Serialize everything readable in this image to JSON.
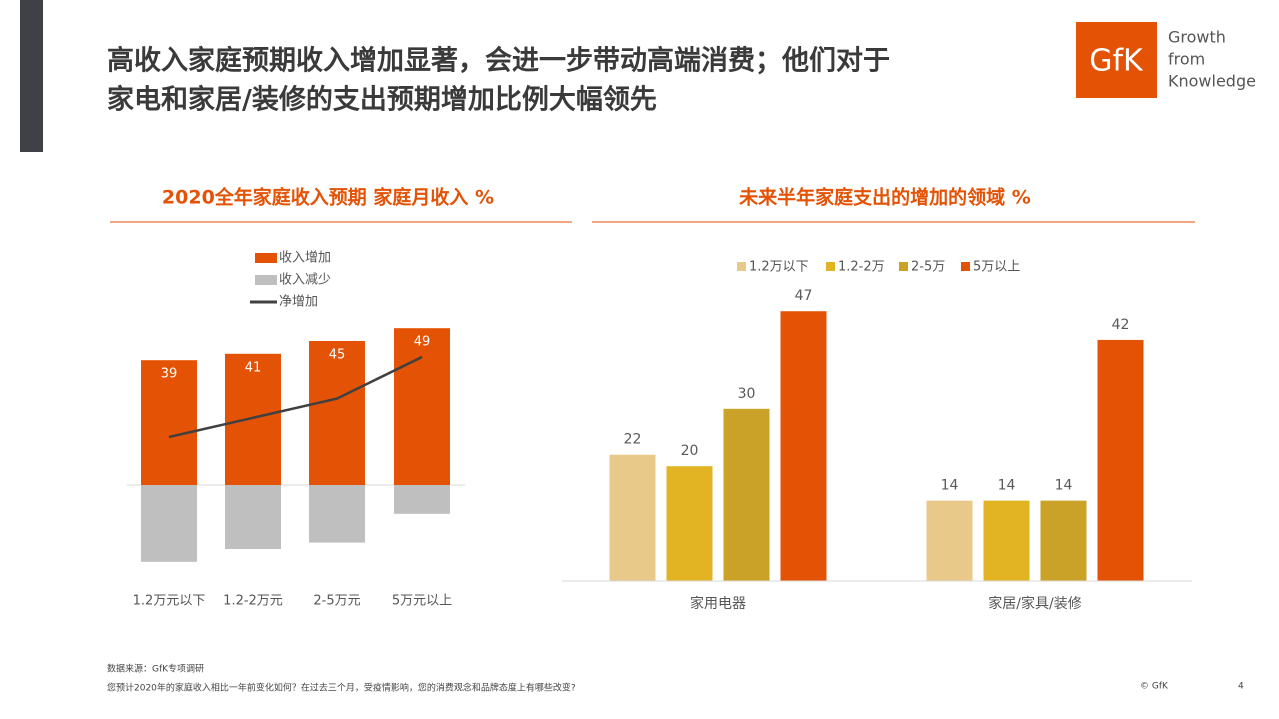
{
  "header": {
    "title_lines": [
      "高收入家庭预期收入增加显著，会进一步带动高端消费；他们对于",
      "家电和家居/装修的支出预期增加比例大幅领先"
    ],
    "logo": "GfK",
    "tagline": [
      "Growth",
      "from",
      "Knowledge"
    ]
  },
  "chart_data": [
    {
      "type": "bar",
      "title": "2020全年家庭收入预期 家庭月收入  %",
      "categories": [
        "1.2万元以下",
        "1.2-2万元",
        "2-5万元",
        "5万元以上"
      ],
      "series": [
        {
          "name": "收入增加",
          "color": "#e35205",
          "values": [
            39,
            41,
            45,
            49
          ]
        },
        {
          "name": "收入减少",
          "color": "#bfbfbf",
          "values": [
            -24,
            -20,
            -18,
            -9
          ]
        },
        {
          "name": "净增加",
          "color": "#404040",
          "type": "line",
          "values": [
            15,
            21,
            27,
            40
          ]
        }
      ]
    },
    {
      "type": "bar",
      "title": "未来半年家庭支出的增加的领域 %",
      "categories": [
        "家用电器",
        "家居/家具/装修"
      ],
      "series": [
        {
          "name": "1.2万以下",
          "color": "#e8c98a",
          "values": [
            22,
            14
          ]
        },
        {
          "name": "1.2-2万",
          "color": "#e2b423",
          "values": [
            20,
            14
          ]
        },
        {
          "name": "2-5万",
          "color": "#c9a227",
          "values": [
            30,
            14
          ]
        },
        {
          "name": "5万以上",
          "color": "#e35205",
          "values": [
            47,
            42
          ]
        }
      ]
    }
  ],
  "footer": {
    "source": "数据来源：GfK专项调研",
    "question": "您预计2020年的家庭收入相比一年前变化如何？在过去三个月，受疫情影响，您的消费观念和品牌态度上有哪些改变?",
    "copyright": "© GfK",
    "page": "4"
  }
}
